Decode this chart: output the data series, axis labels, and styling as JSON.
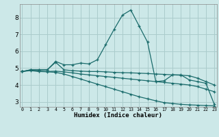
{
  "xlabel": "Humidex (Indice chaleur)",
  "background_color": "#cce8e8",
  "grid_color": "#aacccc",
  "line_color": "#1a6b6b",
  "x_ticks": [
    0,
    1,
    2,
    3,
    4,
    5,
    6,
    7,
    8,
    9,
    10,
    11,
    12,
    13,
    14,
    15,
    16,
    17,
    18,
    19,
    20,
    21,
    22,
    23
  ],
  "ylim": [
    2.7,
    8.8
  ],
  "xlim": [
    -0.3,
    23.3
  ],
  "yticks": [
    3,
    4,
    5,
    6,
    7,
    8
  ],
  "series": [
    {
      "x": [
        0,
        1,
        2,
        3,
        4,
        5,
        6,
        7,
        8,
        9,
        10,
        11,
        12,
        13,
        14,
        15,
        16,
        17,
        18,
        19,
        20,
        21,
        22,
        23
      ],
      "y": [
        4.8,
        4.9,
        4.9,
        4.9,
        5.4,
        5.2,
        5.2,
        5.3,
        5.25,
        5.5,
        6.4,
        7.3,
        8.15,
        8.45,
        7.5,
        6.55,
        4.2,
        4.25,
        4.6,
        4.6,
        4.3,
        4.2,
        4.1,
        2.85
      ]
    },
    {
      "x": [
        0,
        1,
        2,
        3,
        4,
        5,
        6,
        7,
        8,
        9,
        10,
        11,
        12,
        13,
        14,
        15,
        16,
        17,
        18,
        19,
        20,
        21,
        22,
        23
      ],
      "y": [
        4.8,
        4.9,
        4.9,
        4.9,
        5.35,
        4.9,
        4.85,
        4.82,
        4.8,
        4.8,
        4.78,
        4.75,
        4.73,
        4.72,
        4.7,
        4.68,
        4.65,
        4.63,
        4.6,
        4.58,
        4.55,
        4.4,
        4.2,
        4.0
      ]
    },
    {
      "x": [
        0,
        1,
        2,
        3,
        4,
        5,
        6,
        7,
        8,
        9,
        10,
        11,
        12,
        13,
        14,
        15,
        16,
        17,
        18,
        19,
        20,
        21,
        22,
        23
      ],
      "y": [
        4.8,
        4.88,
        4.82,
        4.8,
        4.82,
        4.78,
        4.72,
        4.65,
        4.6,
        4.55,
        4.5,
        4.45,
        4.4,
        4.35,
        4.3,
        4.25,
        4.2,
        4.15,
        4.1,
        4.05,
        4.0,
        3.9,
        3.75,
        3.6
      ]
    },
    {
      "x": [
        0,
        1,
        2,
        3,
        4,
        5,
        6,
        7,
        8,
        9,
        10,
        11,
        12,
        13,
        14,
        15,
        16,
        17,
        18,
        19,
        20,
        21,
        22,
        23
      ],
      "y": [
        4.8,
        4.85,
        4.8,
        4.78,
        4.75,
        4.65,
        4.5,
        4.35,
        4.2,
        4.05,
        3.9,
        3.75,
        3.6,
        3.45,
        3.3,
        3.18,
        3.06,
        2.95,
        2.9,
        2.85,
        2.82,
        2.8,
        2.78,
        2.76
      ]
    }
  ]
}
